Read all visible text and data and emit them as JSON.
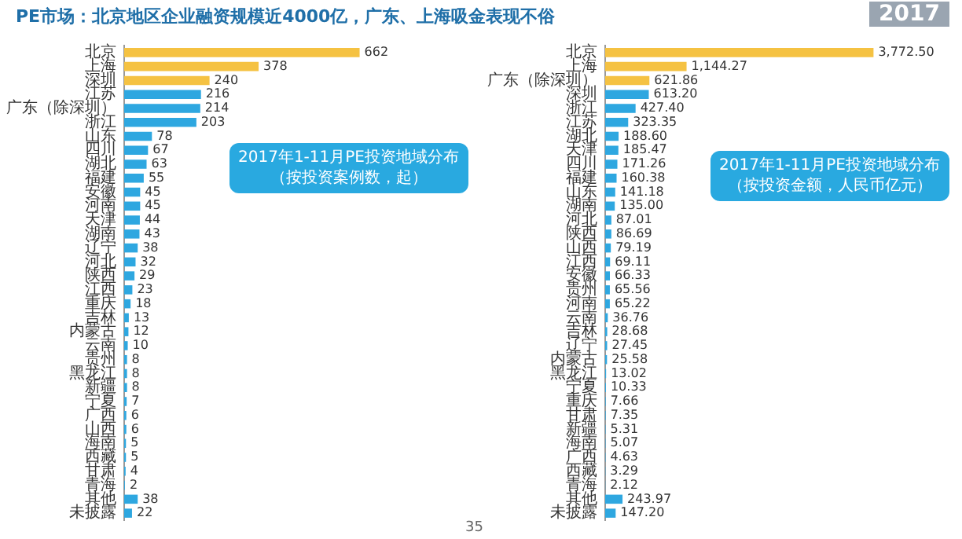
{
  "chart_data": [
    {
      "type": "bar",
      "orientation": "horizontal",
      "title": "2017年1-11月PE投资地域分布",
      "subtitle": "（按投资案例数，起）",
      "annotations": [
        "PE市场：北京地区企业融资规模近4000亿，广东、上海吸金表现不俗",
        "2017",
        "35"
      ],
      "categories": [
        "北京",
        "上海",
        "深圳",
        "江苏",
        "广东（除深圳）",
        "浙江",
        "山东",
        "四川",
        "湖北",
        "福建",
        "安徽",
        "河南",
        "天津",
        "湖南",
        "辽宁",
        "河北",
        "陕西",
        "江西",
        "重庆",
        "吉林",
        "内蒙古",
        "云南",
        "贵州",
        "黑龙江",
        "新疆",
        "宁夏",
        "广西",
        "山西",
        "海南",
        "西藏",
        "甘肃",
        "青海",
        "其他",
        "未披露"
      ],
      "values": [
        662,
        378,
        240,
        216,
        214,
        203,
        78,
        67,
        63,
        55,
        45,
        45,
        44,
        43,
        38,
        32,
        29,
        23,
        18,
        13,
        12,
        10,
        8,
        8,
        8,
        7,
        6,
        6,
        5,
        5,
        4,
        2,
        38,
        22
      ],
      "colors": [
        "#f5c242",
        "#f5c242",
        "#f5c242",
        "#2ea7e0",
        "#2ea7e0",
        "#2ea7e0",
        "#2ea7e0",
        "#2ea7e0",
        "#2ea7e0",
        "#2ea7e0",
        "#2ea7e0",
        "#2ea7e0",
        "#2ea7e0",
        "#2ea7e0",
        "#2ea7e0",
        "#2ea7e0",
        "#2ea7e0",
        "#2ea7e0",
        "#2ea7e0",
        "#2ea7e0",
        "#2ea7e0",
        "#2ea7e0",
        "#2ea7e0",
        "#2ea7e0",
        "#2ea7e0",
        "#2ea7e0",
        "#2ea7e0",
        "#2ea7e0",
        "#2ea7e0",
        "#2ea7e0",
        "#2ea7e0",
        "#2ea7e0",
        "#2ea7e0",
        "#2ea7e0"
      ],
      "data_labels": true,
      "tick_labels": "y",
      "grid": false,
      "legend": false
    },
    {
      "type": "bar",
      "orientation": "horizontal",
      "title": "2017年1-11月PE投资地域分布",
      "subtitle": "（按投资金额，人民币亿元）",
      "categories": [
        "北京",
        "上海",
        "广东（除深圳）",
        "深圳",
        "浙江",
        "江苏",
        "湖北",
        "天津",
        "四川",
        "福建",
        "山东",
        "湖南",
        "河北",
        "陕西",
        "山西",
        "江西",
        "安徽",
        "贵州",
        "河南",
        "云南",
        "吉林",
        "辽宁",
        "内蒙古",
        "黑龙江",
        "宁夏",
        "重庆",
        "甘肃",
        "新疆",
        "海南",
        "广西",
        "西藏",
        "青海",
        "其他",
        "未披露"
      ],
      "values": [
        3772.5,
        1144.27,
        621.86,
        613.2,
        427.4,
        323.35,
        188.6,
        185.47,
        171.26,
        160.38,
        141.18,
        135,
        87.01,
        86.69,
        79.19,
        69.11,
        66.33,
        65.56,
        65.22,
        36.76,
        28.68,
        27.45,
        25.58,
        13.02,
        10.33,
        7.66,
        7.35,
        5.31,
        5.07,
        4.63,
        3.29,
        2.12,
        243.97,
        147.2
      ],
      "value_labels": [
        "3,772.50",
        "1,144.27",
        "621.86",
        "613.20",
        "427.40",
        "323.35",
        "188.60",
        "185.47",
        "171.26",
        "160.38",
        "141.18",
        "135.00",
        "87.01",
        "86.69",
        "79.19",
        "69.11",
        "66.33",
        "65.56",
        "65.22",
        "36.76",
        "28.68",
        "27.45",
        "25.58",
        "13.02",
        "10.33",
        "7.66",
        "7.35",
        "5.31",
        "5.07",
        "4.63",
        "3.29",
        "2.12",
        "243.97",
        "147.20"
      ],
      "colors": [
        "#f5c242",
        "#f5c242",
        "#f5c242",
        "#2ea7e0",
        "#2ea7e0",
        "#2ea7e0",
        "#2ea7e0",
        "#2ea7e0",
        "#2ea7e0",
        "#2ea7e0",
        "#2ea7e0",
        "#2ea7e0",
        "#2ea7e0",
        "#2ea7e0",
        "#2ea7e0",
        "#2ea7e0",
        "#2ea7e0",
        "#2ea7e0",
        "#2ea7e0",
        "#2ea7e0",
        "#2ea7e0",
        "#2ea7e0",
        "#2ea7e0",
        "#2ea7e0",
        "#2ea7e0",
        "#2ea7e0",
        "#2ea7e0",
        "#2ea7e0",
        "#2ea7e0",
        "#2ea7e0",
        "#2ea7e0",
        "#2ea7e0",
        "#2ea7e0",
        "#2ea7e0"
      ],
      "tick_labels": "y",
      "grid": false,
      "legend": false
    }
  ]
}
